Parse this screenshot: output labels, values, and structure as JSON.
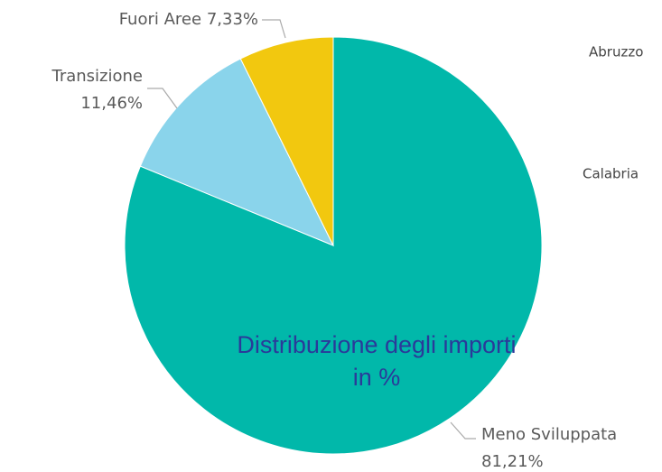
{
  "chart_data": {
    "type": "pie",
    "title": "Distribuzione degli importi in %",
    "categories": [
      "Meno Sviluppata",
      "Transizione",
      "Fuori Aree"
    ],
    "values": [
      81.21,
      11.46,
      7.33
    ],
    "value_labels": [
      "81,21%",
      "11,46%",
      "7,33%"
    ],
    "colors": [
      "#01b8aa",
      "#8ad4eb",
      "#f2c80f"
    ],
    "side_labels": [
      "Abruzzo",
      "Calabria"
    ]
  }
}
